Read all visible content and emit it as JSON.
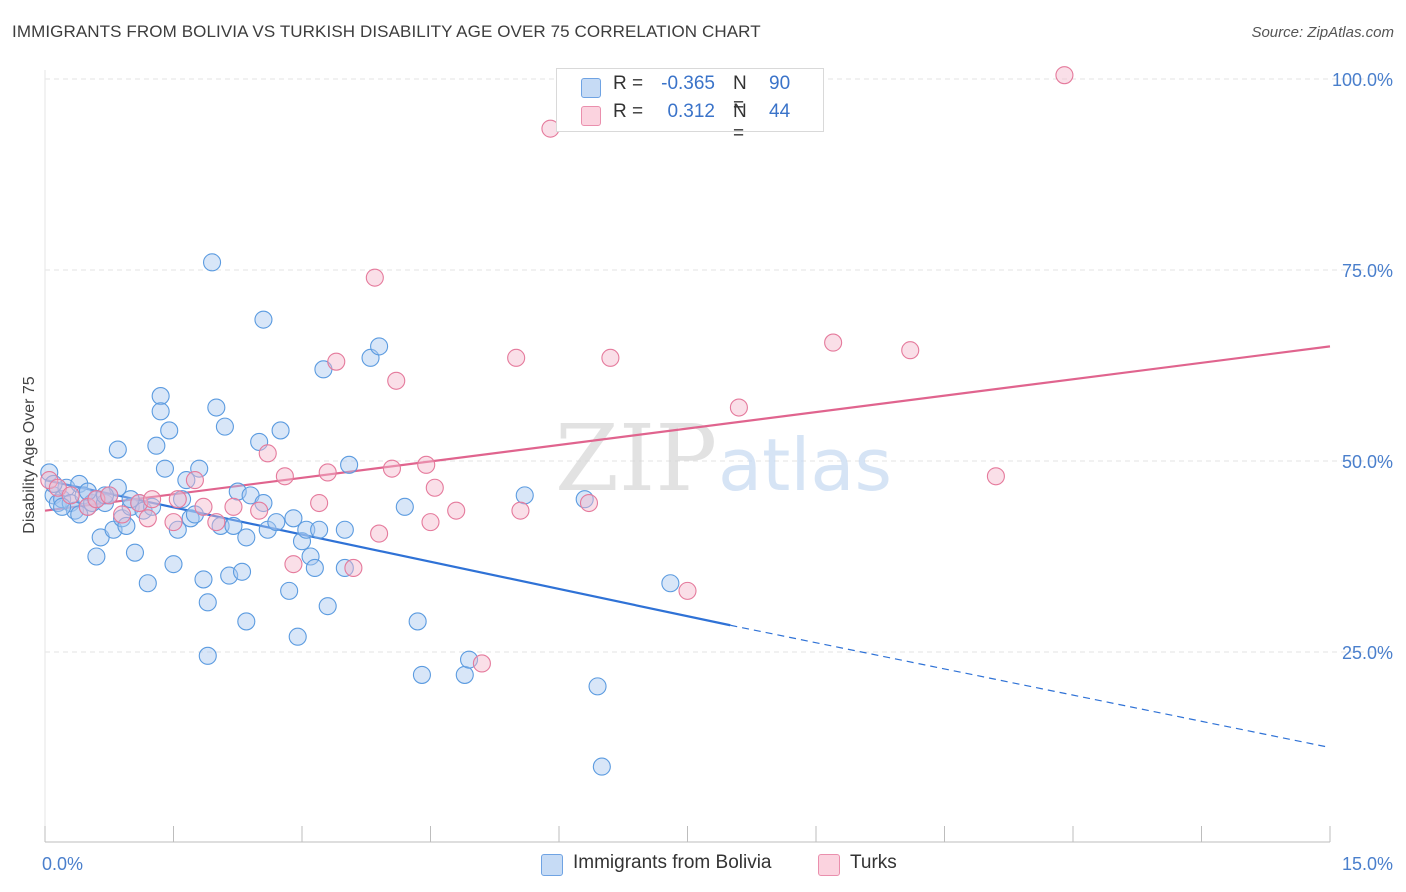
{
  "title": "IMMIGRANTS FROM BOLIVIA VS TURKISH DISABILITY AGE OVER 75 CORRELATION CHART",
  "source": "Source: ZipAtlas.com",
  "watermark": {
    "zip": "ZIP",
    "atlas": "atlas"
  },
  "legend_top": {
    "rows": [
      {
        "r_label": "R =",
        "r_value": "-0.365",
        "n_label": "N =",
        "n_value": "90",
        "color": "#a8c8f0"
      },
      {
        "r_label": "R =",
        "r_value": "0.312",
        "n_label": "N =",
        "n_value": "44",
        "color": "#f5b8cb"
      }
    ]
  },
  "legend_bottom": [
    {
      "label": "Immigrants from Bolivia",
      "color": "#a8c8f0"
    },
    {
      "label": "Turks",
      "color": "#f5b8cb"
    }
  ],
  "chart_data": {
    "type": "scatter",
    "title": "IMMIGRANTS FROM BOLIVIA VS TURKISH DISABILITY AGE OVER 75 CORRELATION CHART",
    "xlabel": "",
    "ylabel": "Disability Age Over 75",
    "xlim": [
      0,
      15
    ],
    "ylim": [
      0,
      105
    ],
    "x_tick_labels": [
      "0.0%",
      "15.0%"
    ],
    "y_ticks": [
      25,
      50,
      75,
      100
    ],
    "y_tick_labels": [
      "25.0%",
      "50.0%",
      "75.0%",
      "100.0%"
    ],
    "grid": true,
    "legend_position": "top-center",
    "series": [
      {
        "name": "Immigrants from Bolivia",
        "color": "#5b9be0",
        "fill": "#a8c8f0",
        "trend": {
          "x0": 0,
          "y0": 47.5,
          "x1": 8.0,
          "y1": 28.5,
          "x_dash_end": 15.0,
          "y_dash_end": 12.5,
          "color": "#2f72d6"
        },
        "points": [
          [
            0.05,
            48.5
          ],
          [
            0.1,
            45.5
          ],
          [
            0.15,
            44.5
          ],
          [
            0.2,
            45.0
          ],
          [
            0.25,
            46.5
          ],
          [
            0.3,
            44.5
          ],
          [
            0.35,
            43.5
          ],
          [
            0.4,
            47.0
          ],
          [
            0.45,
            45.5
          ],
          [
            0.5,
            44.0
          ],
          [
            0.55,
            44.5
          ],
          [
            0.6,
            45.0
          ],
          [
            0.65,
            40.0
          ],
          [
            0.6,
            37.5
          ],
          [
            0.7,
            44.5
          ],
          [
            0.75,
            45.5
          ],
          [
            0.8,
            41.0
          ],
          [
            0.85,
            46.5
          ],
          [
            0.85,
            51.5
          ],
          [
            0.9,
            42.5
          ],
          [
            0.95,
            41.5
          ],
          [
            1.0,
            44.0
          ],
          [
            1.05,
            38.0
          ],
          [
            1.1,
            44.5
          ],
          [
            1.15,
            43.5
          ],
          [
            1.2,
            34.0
          ],
          [
            1.25,
            44.0
          ],
          [
            1.3,
            52.0
          ],
          [
            1.35,
            58.5
          ],
          [
            1.35,
            56.5
          ],
          [
            1.4,
            49.0
          ],
          [
            1.45,
            54.0
          ],
          [
            1.5,
            36.5
          ],
          [
            1.55,
            41.0
          ],
          [
            1.6,
            45.0
          ],
          [
            1.65,
            47.5
          ],
          [
            1.7,
            42.5
          ],
          [
            1.75,
            43.0
          ],
          [
            1.8,
            49.0
          ],
          [
            1.85,
            34.5
          ],
          [
            1.9,
            31.5
          ],
          [
            1.9,
            24.5
          ],
          [
            1.95,
            76.0
          ],
          [
            2.0,
            57.0
          ],
          [
            2.05,
            41.5
          ],
          [
            2.1,
            54.5
          ],
          [
            2.15,
            35.0
          ],
          [
            2.2,
            41.5
          ],
          [
            2.25,
            46.0
          ],
          [
            2.3,
            35.5
          ],
          [
            2.35,
            40.0
          ],
          [
            2.35,
            29.0
          ],
          [
            2.4,
            45.5
          ],
          [
            2.5,
            52.5
          ],
          [
            2.55,
            68.5
          ],
          [
            2.55,
            44.5
          ],
          [
            2.6,
            41.0
          ],
          [
            2.7,
            42.0
          ],
          [
            2.75,
            54.0
          ],
          [
            2.85,
            33.0
          ],
          [
            2.9,
            42.5
          ],
          [
            2.95,
            27.0
          ],
          [
            3.0,
            39.5
          ],
          [
            3.05,
            41.0
          ],
          [
            3.1,
            37.5
          ],
          [
            3.15,
            36.0
          ],
          [
            3.2,
            41.0
          ],
          [
            3.25,
            62.0
          ],
          [
            3.3,
            31.0
          ],
          [
            3.55,
            49.5
          ],
          [
            3.5,
            41.0
          ],
          [
            3.5,
            36.0
          ],
          [
            3.8,
            63.5
          ],
          [
            3.9,
            65.0
          ],
          [
            4.2,
            44.0
          ],
          [
            4.35,
            29.0
          ],
          [
            4.4,
            22.0
          ],
          [
            4.9,
            22.0
          ],
          [
            4.95,
            24.0
          ],
          [
            5.6,
            45.5
          ],
          [
            6.3,
            45.0
          ],
          [
            6.45,
            20.5
          ],
          [
            6.5,
            10.0
          ],
          [
            7.3,
            34.0
          ],
          [
            0.1,
            47.0
          ],
          [
            0.2,
            44.0
          ],
          [
            0.4,
            43.0
          ],
          [
            0.5,
            46.0
          ],
          [
            0.7,
            45.5
          ],
          [
            1.0,
            45.0
          ]
        ]
      },
      {
        "name": "Turks",
        "color": "#e57a9c",
        "fill": "#f5b8cb",
        "trend": {
          "x0": 0,
          "y0": 43.5,
          "x1": 15.0,
          "y1": 65.0,
          "color": "#e0648e"
        },
        "points": [
          [
            0.05,
            47.5
          ],
          [
            0.15,
            46.5
          ],
          [
            0.3,
            45.5
          ],
          [
            0.5,
            44.0
          ],
          [
            0.6,
            45.0
          ],
          [
            0.75,
            45.5
          ],
          [
            0.9,
            43.0
          ],
          [
            1.1,
            44.5
          ],
          [
            1.2,
            42.5
          ],
          [
            1.25,
            45.0
          ],
          [
            1.5,
            42.0
          ],
          [
            1.55,
            45.0
          ],
          [
            1.75,
            47.5
          ],
          [
            1.85,
            44.0
          ],
          [
            2.0,
            42.0
          ],
          [
            2.2,
            44.0
          ],
          [
            2.5,
            43.5
          ],
          [
            2.6,
            51.0
          ],
          [
            2.9,
            36.5
          ],
          [
            2.8,
            48.0
          ],
          [
            3.2,
            44.5
          ],
          [
            3.3,
            48.5
          ],
          [
            3.4,
            63.0
          ],
          [
            3.6,
            36.0
          ],
          [
            3.85,
            74.0
          ],
          [
            3.9,
            40.5
          ],
          [
            4.05,
            49.0
          ],
          [
            4.1,
            60.5
          ],
          [
            4.45,
            49.5
          ],
          [
            4.5,
            42.0
          ],
          [
            4.55,
            46.5
          ],
          [
            4.8,
            43.5
          ],
          [
            5.1,
            23.5
          ],
          [
            5.5,
            63.5
          ],
          [
            5.55,
            43.5
          ],
          [
            5.9,
            93.5
          ],
          [
            6.35,
            44.5
          ],
          [
            6.6,
            63.5
          ],
          [
            7.5,
            33.0
          ],
          [
            8.1,
            57.0
          ],
          [
            9.2,
            65.5
          ],
          [
            10.1,
            64.5
          ],
          [
            11.1,
            48.0
          ],
          [
            11.9,
            100.5
          ]
        ]
      }
    ]
  }
}
